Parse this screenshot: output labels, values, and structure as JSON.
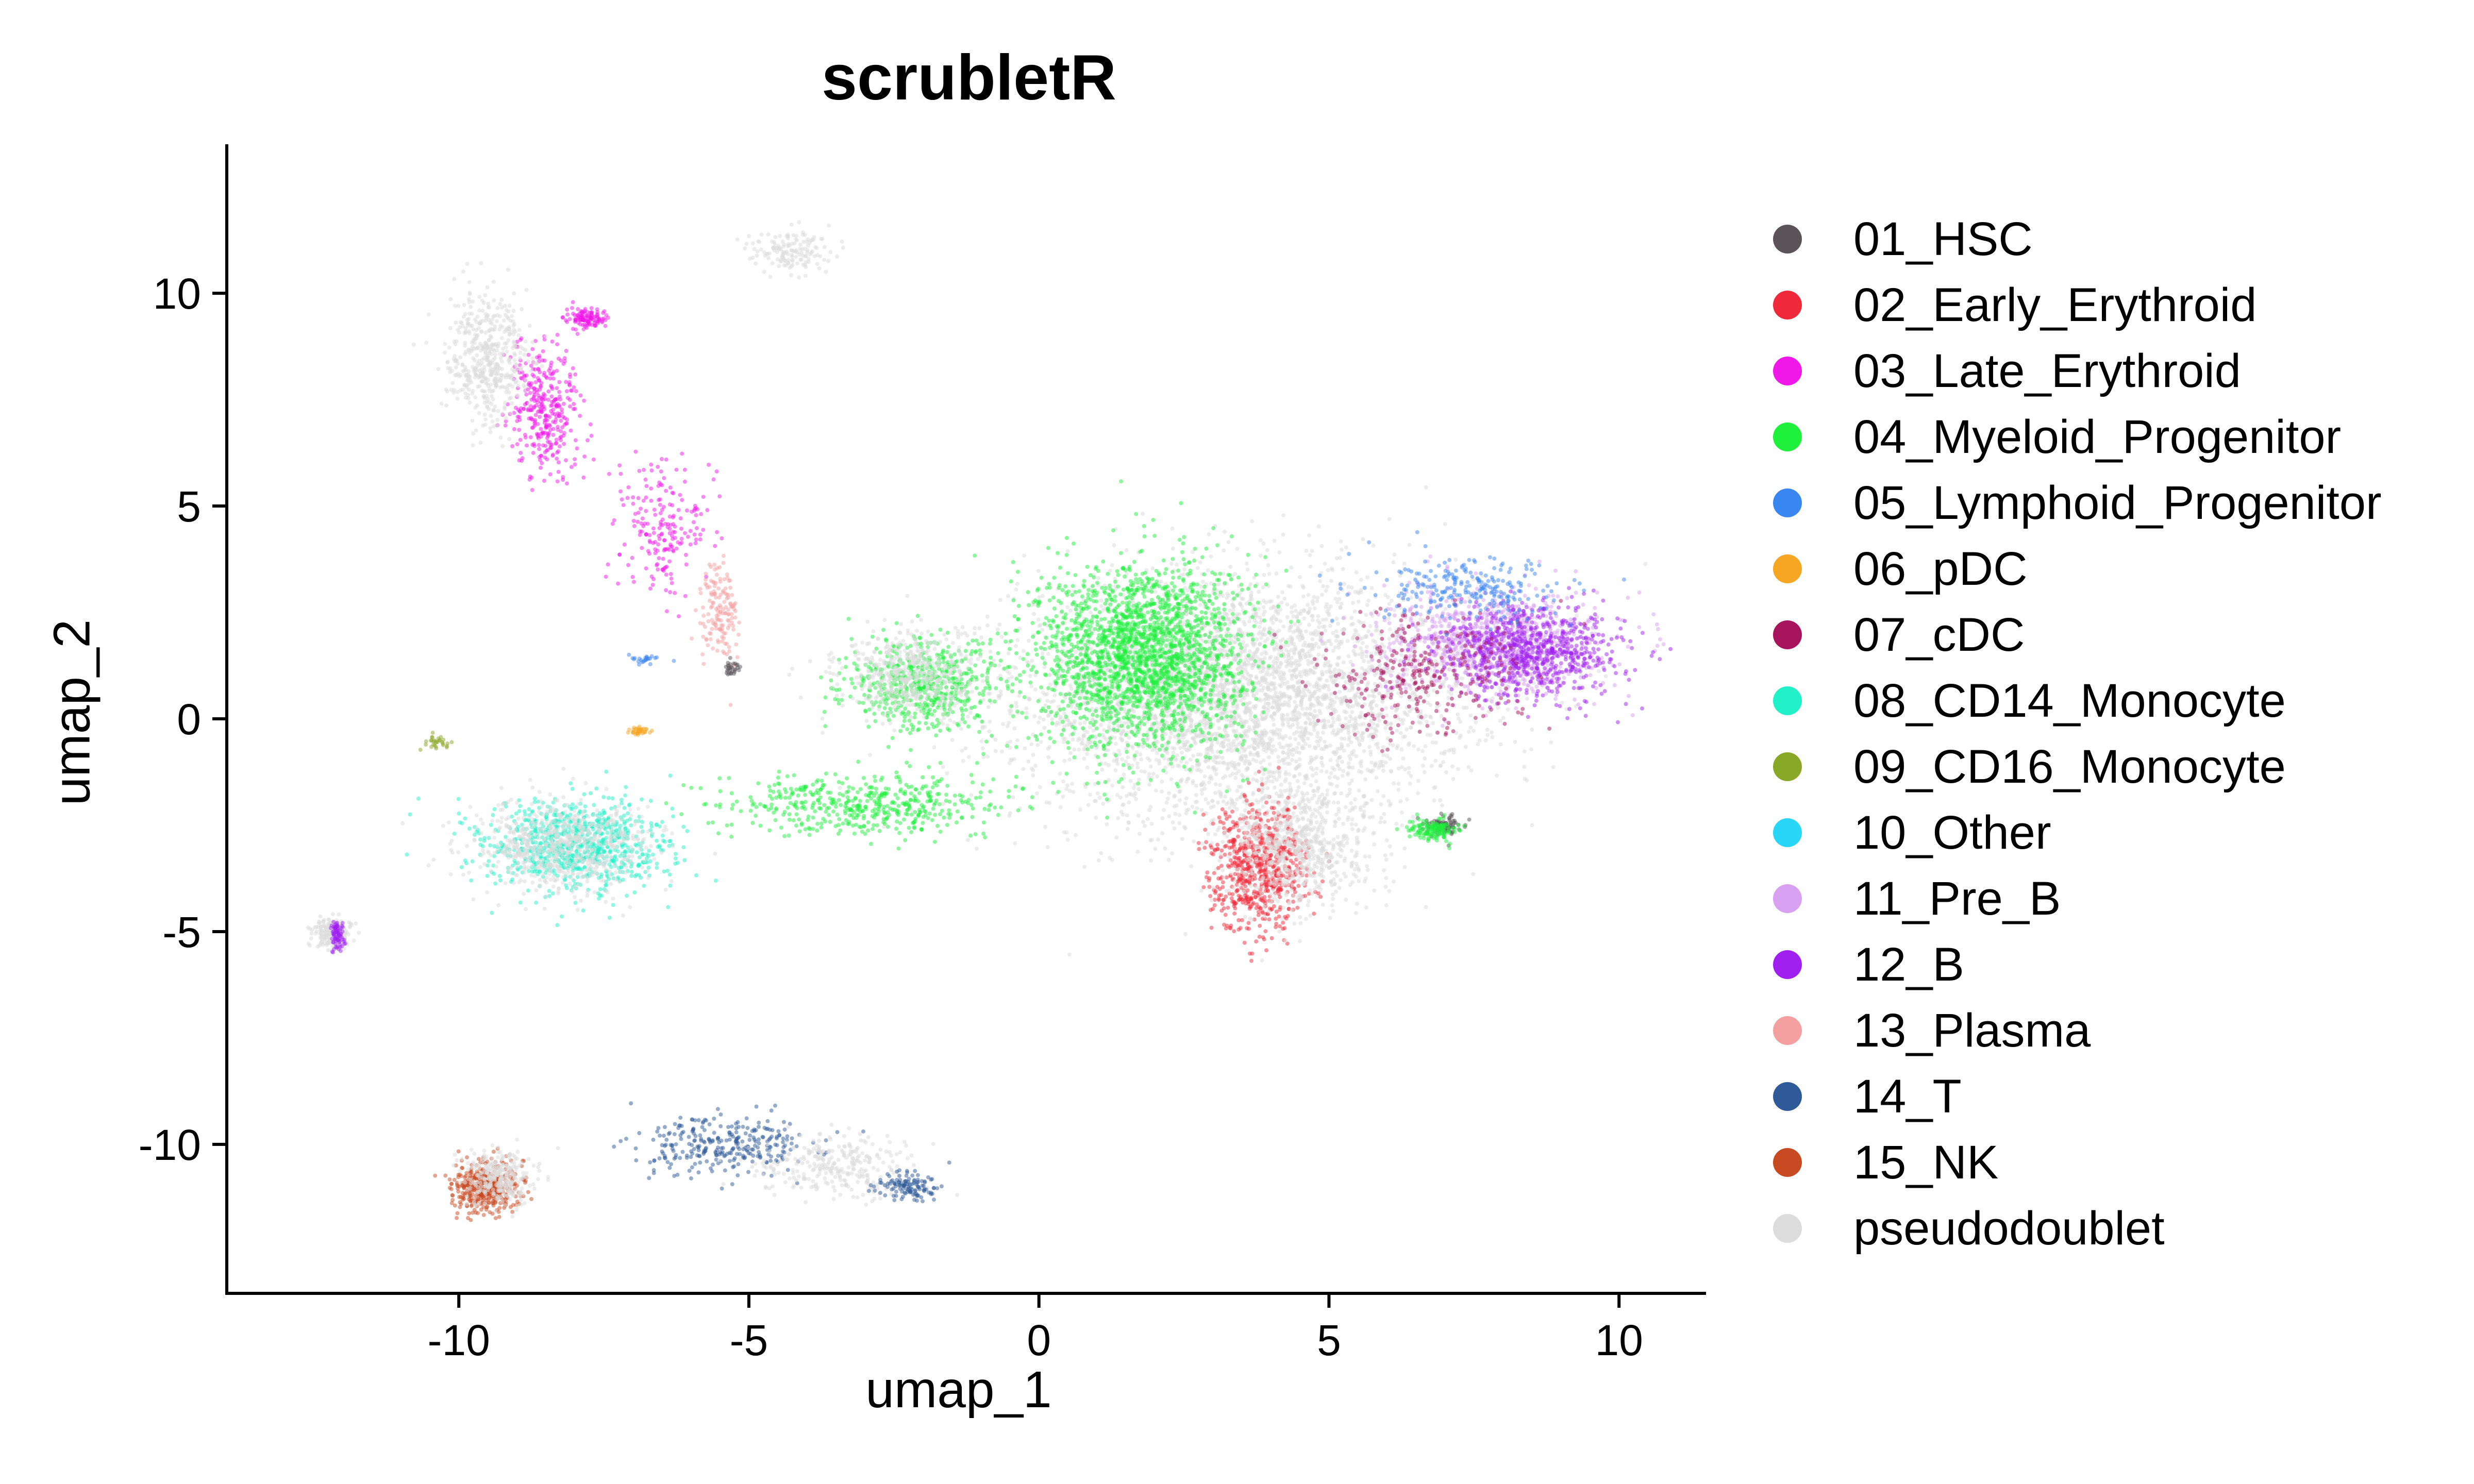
{
  "chart_data": {
    "type": "scatter",
    "title": "scrubletR",
    "xlabel": "umap_1",
    "ylabel": "umap_2",
    "xlim": [
      -14,
      11.5
    ],
    "ylim": [
      -13.5,
      13.5
    ],
    "xticks": [
      -10,
      -5,
      0,
      5,
      10
    ],
    "yticks": [
      -10,
      -5,
      0,
      5,
      10
    ],
    "grid": false,
    "legend_position": "right",
    "categories": [
      {
        "name": "01_HSC",
        "color": "#5a5458"
      },
      {
        "name": "02_Early_Erythroid",
        "color": "#f0293a"
      },
      {
        "name": "03_Late_Erythroid",
        "color": "#f018e8"
      },
      {
        "name": "04_Myeloid_Progenitor",
        "color": "#1ef03c"
      },
      {
        "name": "05_Lymphoid_Progenitor",
        "color": "#3a86f0"
      },
      {
        "name": "06_pDC",
        "color": "#f5a623"
      },
      {
        "name": "07_cDC",
        "color": "#a8135e"
      },
      {
        "name": "08_CD14_Monocyte",
        "color": "#22f0c8"
      },
      {
        "name": "09_CD16_Monocyte",
        "color": "#8aa828"
      },
      {
        "name": "10_Other",
        "color": "#2ad6f5"
      },
      {
        "name": "11_Pre_B",
        "color": "#d8a0f0"
      },
      {
        "name": "12_B",
        "color": "#a020f0"
      },
      {
        "name": "13_Plasma",
        "color": "#f4a0a0"
      },
      {
        "name": "14_T",
        "color": "#2e5a98"
      },
      {
        "name": "15_NK",
        "color": "#c84a22"
      },
      {
        "name": "pseudodoublet",
        "color": "#dcdcdc"
      }
    ],
    "clusters": [
      {
        "label": "pseudodoublet",
        "cx": 3.5,
        "cy": 0.5,
        "sx": 3.2,
        "sy": 2.4,
        "n": 4000
      },
      {
        "label": "04_Myeloid_Progenitor",
        "cx": 1.8,
        "cy": 1.5,
        "sx": 1.5,
        "sy": 1.8,
        "n": 2200
      },
      {
        "label": "11_Pre_B",
        "cx": 7.8,
        "cy": 1.8,
        "sx": 1.5,
        "sy": 1.0,
        "n": 900
      },
      {
        "label": "12_B",
        "cx": 8.5,
        "cy": 1.6,
        "sx": 1.3,
        "sy": 0.9,
        "n": 800
      },
      {
        "label": "07_cDC",
        "cx": 6.5,
        "cy": 1.0,
        "sx": 1.5,
        "sy": 1.2,
        "n": 300
      },
      {
        "label": "05_Lymphoid_Progenitor",
        "cx": 7.5,
        "cy": 3.0,
        "sx": 1.4,
        "sy": 0.6,
        "n": 250
      },
      {
        "label": "02_Early_Erythroid",
        "cx": 3.8,
        "cy": -3.5,
        "sx": 0.7,
        "sy": 1.2,
        "n": 700
      },
      {
        "label": "pseudodoublet",
        "cx": 4.5,
        "cy": -3.0,
        "sx": 1.0,
        "sy": 1.2,
        "n": 700
      },
      {
        "label": "01_HSC",
        "cx": 7.0,
        "cy": -2.5,
        "sx": 0.25,
        "sy": 0.2,
        "n": 90
      },
      {
        "label": "04_Myeloid_Progenitor",
        "cx": 6.8,
        "cy": -2.6,
        "sx": 0.35,
        "sy": 0.2,
        "n": 140
      },
      {
        "label": "04_Myeloid_Progenitor",
        "cx": -2.0,
        "cy": 0.8,
        "sx": 1.1,
        "sy": 0.9,
        "n": 600
      },
      {
        "label": "pseudodoublet",
        "cx": -2.2,
        "cy": 1.0,
        "sx": 1.0,
        "sy": 0.8,
        "n": 500
      },
      {
        "label": "04_Myeloid_Progenitor",
        "cx": -3.0,
        "cy": -2.0,
        "sx": 2.0,
        "sy": 0.6,
        "n": 500
      },
      {
        "label": "08_CD14_Monocyte",
        "cx": -8.0,
        "cy": -3.0,
        "sx": 1.3,
        "sy": 0.9,
        "n": 900
      },
      {
        "label": "pseudodoublet",
        "cx": -8.2,
        "cy": -3.0,
        "sx": 1.3,
        "sy": 0.9,
        "n": 700
      },
      {
        "label": "03_Late_Erythroid",
        "cx": -8.5,
        "cy": 7.2,
        "sx": 0.5,
        "sy": 1.3,
        "n": 350
      },
      {
        "label": "pseudodoublet",
        "cx": -9.5,
        "cy": 8.5,
        "sx": 0.6,
        "sy": 1.2,
        "n": 500
      },
      {
        "label": "03_Late_Erythroid",
        "cx": -7.8,
        "cy": 9.4,
        "sx": 0.3,
        "sy": 0.2,
        "n": 120
      },
      {
        "label": "03_Late_Erythroid",
        "cx": -6.5,
        "cy": 4.5,
        "sx": 0.6,
        "sy": 1.3,
        "n": 200
      },
      {
        "label": "13_Plasma",
        "cx": -5.5,
        "cy": 2.5,
        "sx": 0.3,
        "sy": 1.0,
        "n": 150
      },
      {
        "label": "pseudodoublet",
        "cx": -4.3,
        "cy": 11.0,
        "sx": 0.6,
        "sy": 0.4,
        "n": 150
      },
      {
        "label": "pseudodoublet",
        "cx": -12.2,
        "cy": -5.0,
        "sx": 0.3,
        "sy": 0.3,
        "n": 150
      },
      {
        "label": "12_B",
        "cx": -12.1,
        "cy": -5.1,
        "sx": 0.1,
        "sy": 0.3,
        "n": 80
      },
      {
        "label": "15_NK",
        "cx": -9.5,
        "cy": -11.0,
        "sx": 0.5,
        "sy": 0.5,
        "n": 450
      },
      {
        "label": "pseudodoublet",
        "cx": -9.3,
        "cy": -10.8,
        "sx": 0.5,
        "sy": 0.5,
        "n": 300
      },
      {
        "label": "14_T",
        "cx": -5.5,
        "cy": -10.0,
        "sx": 1.2,
        "sy": 0.6,
        "n": 300
      },
      {
        "label": "pseudodoublet",
        "cx": -3.5,
        "cy": -10.5,
        "sx": 1.2,
        "sy": 0.6,
        "n": 300
      },
      {
        "label": "14_T",
        "cx": -2.3,
        "cy": -11.0,
        "sx": 0.4,
        "sy": 0.3,
        "n": 120
      },
      {
        "label": "06_pDC",
        "cx": -6.9,
        "cy": -0.3,
        "sx": 0.15,
        "sy": 0.1,
        "n": 40
      },
      {
        "label": "05_Lymphoid_Progenitor",
        "cx": -6.8,
        "cy": 1.4,
        "sx": 0.2,
        "sy": 0.1,
        "n": 25
      },
      {
        "label": "01_HSC",
        "cx": -5.3,
        "cy": 1.2,
        "sx": 0.12,
        "sy": 0.15,
        "n": 30
      },
      {
        "label": "09_CD16_Monocyte",
        "cx": -10.4,
        "cy": -0.6,
        "sx": 0.2,
        "sy": 0.2,
        "n": 30
      }
    ]
  },
  "legend": {
    "items": [
      {
        "label": "01_HSC",
        "color": "#5a5458"
      },
      {
        "label": "02_Early_Erythroid",
        "color": "#f0293a"
      },
      {
        "label": "03_Late_Erythroid",
        "color": "#f018e8"
      },
      {
        "label": "04_Myeloid_Progenitor",
        "color": "#1ef03c"
      },
      {
        "label": "05_Lymphoid_Progenitor",
        "color": "#3a86f0"
      },
      {
        "label": "06_pDC",
        "color": "#f5a623"
      },
      {
        "label": "07_cDC",
        "color": "#a8135e"
      },
      {
        "label": "08_CD14_Monocyte",
        "color": "#22f0c8"
      },
      {
        "label": "09_CD16_Monocyte",
        "color": "#8aa828"
      },
      {
        "label": "10_Other",
        "color": "#2ad6f5"
      },
      {
        "label": "11_Pre_B",
        "color": "#d8a0f0"
      },
      {
        "label": "12_B",
        "color": "#a020f0"
      },
      {
        "label": "13_Plasma",
        "color": "#f4a0a0"
      },
      {
        "label": "14_T",
        "color": "#2e5a98"
      },
      {
        "label": "15_NK",
        "color": "#c84a22"
      },
      {
        "label": "pseudodoublet",
        "color": "#dcdcdc"
      }
    ]
  }
}
